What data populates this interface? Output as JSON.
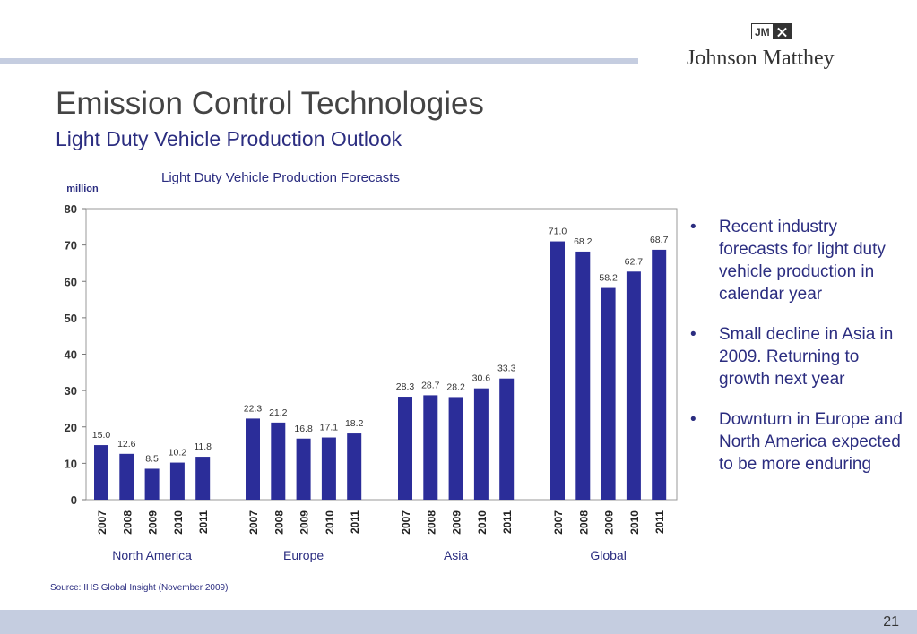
{
  "header": {
    "title": "Emission Control Technologies",
    "subtitle": "Light Duty Vehicle Production Outlook"
  },
  "logo": {
    "mark": "JM",
    "name": "Johnson Matthey"
  },
  "colors": {
    "bar": "#2b2d99",
    "accent": "#2b2d80",
    "band": "#c5cde0"
  },
  "chart_data": {
    "type": "bar",
    "title": "Light Duty Vehicle Production Forecasts",
    "ylabel": "million",
    "xlabel": "",
    "ylim": [
      0,
      80
    ],
    "yticks": [
      0,
      10,
      20,
      30,
      40,
      50,
      60,
      70,
      80
    ],
    "grid": false,
    "groups": [
      {
        "name": "North America",
        "categories": [
          "2007",
          "2008",
          "2009",
          "2010",
          "2011"
        ],
        "values": [
          15.0,
          12.6,
          8.5,
          10.2,
          11.8
        ]
      },
      {
        "name": "Europe",
        "categories": [
          "2007",
          "2008",
          "2009",
          "2010",
          "2011"
        ],
        "values": [
          22.3,
          21.2,
          16.8,
          17.1,
          18.2
        ]
      },
      {
        "name": "Asia",
        "categories": [
          "2007",
          "2008",
          "2009",
          "2010",
          "2011"
        ],
        "values": [
          28.3,
          28.7,
          28.2,
          30.6,
          33.3
        ]
      },
      {
        "name": "Global",
        "categories": [
          "2007",
          "2008",
          "2009",
          "2010",
          "2011"
        ],
        "values": [
          71.0,
          68.2,
          58.2,
          62.7,
          68.7
        ]
      }
    ]
  },
  "bullets": [
    "Recent industry forecasts for light duty vehicle production in calendar year",
    "Small decline in Asia in 2009. Returning to growth next year",
    "Downturn in Europe and North America expected to be more enduring"
  ],
  "bullet_symbol": "•",
  "source": "Source: IHS Global Insight (November 2009)",
  "page_number": "21"
}
